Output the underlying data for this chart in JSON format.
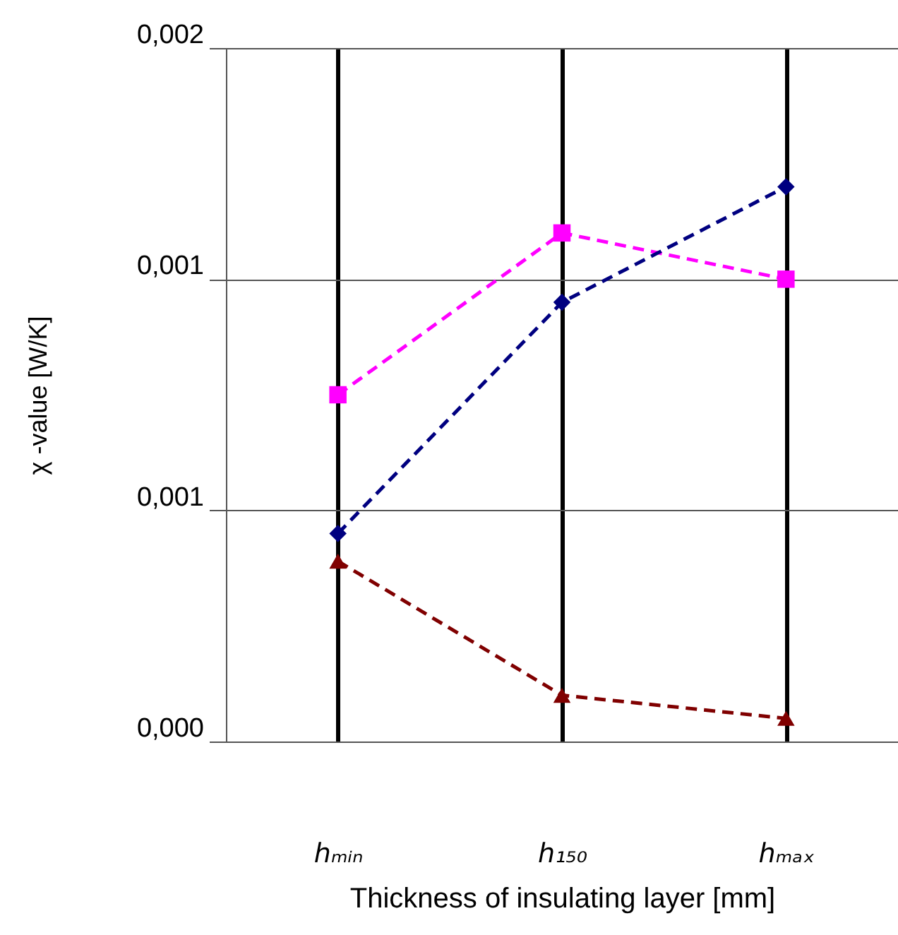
{
  "chart_data": {
    "type": "line",
    "xlabel": "Thickness of insulating layer [mm]",
    "ylabel": "χ -value   [W/K]",
    "categories": [
      "hₘᵢₙ",
      "h₁₅₀",
      "hₘₐₓ"
    ],
    "series": [
      {
        "color": "#ff00ff",
        "marker": "square",
        "values": [
          0.00125,
          0.0016,
          0.0015
        ]
      },
      {
        "color": "#000080",
        "marker": "diamond",
        "values": [
          0.00095,
          0.00145,
          0.0017
        ]
      },
      {
        "color": "#800000",
        "marker": "triangle",
        "values": [
          0.00089,
          0.0006,
          0.00055
        ]
      }
    ],
    "ylim": [
      0.0005,
      0.002
    ],
    "yticks": [
      {
        "value": 0.0005,
        "label": "0,000"
      },
      {
        "value": 0.001,
        "label": "0,001"
      },
      {
        "value": 0.0015,
        "label": "0,001"
      },
      {
        "value": 0.002,
        "label": "0,002"
      }
    ],
    "grid": true,
    "line_style": "dashed"
  }
}
